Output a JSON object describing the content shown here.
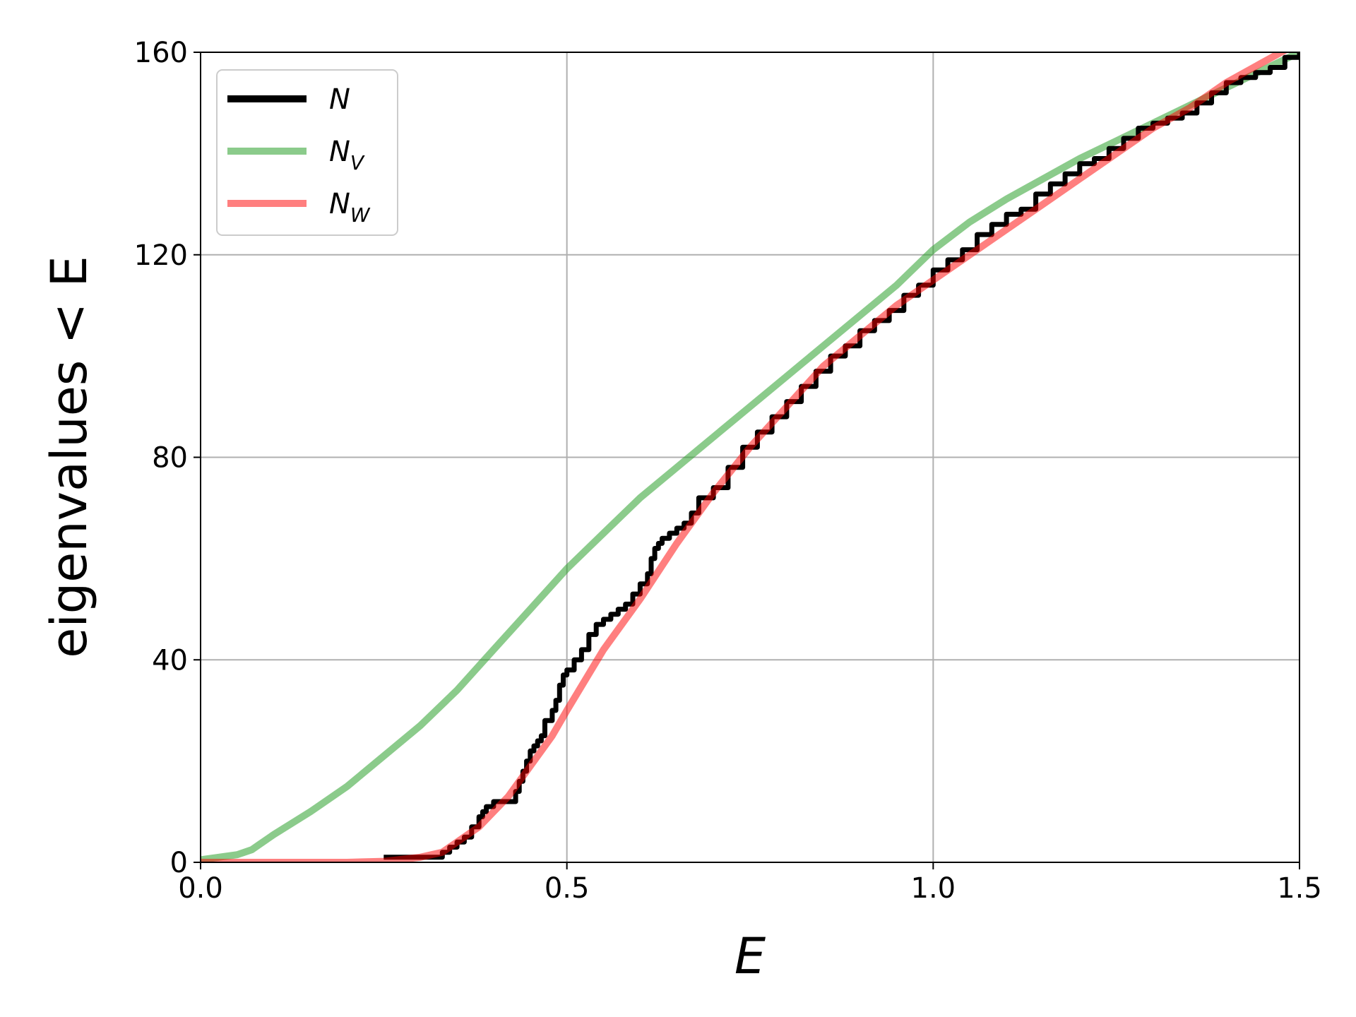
{
  "chart_data": {
    "type": "line",
    "xlabel": "E",
    "ylabel": "eigenvalues < E",
    "xlim": [
      0,
      1.5
    ],
    "ylim": [
      0,
      160
    ],
    "xticks": [
      "0.0",
      "0.5",
      "1.0",
      "1.5"
    ],
    "xtick_values": [
      0,
      0.5,
      1.0,
      1.5
    ],
    "yticks": [
      "0",
      "40",
      "80",
      "120",
      "160"
    ],
    "ytick_values": [
      0,
      40,
      80,
      120,
      160
    ],
    "grid": true,
    "legend_position": "top-left",
    "series": [
      {
        "name": "N",
        "legend_main": "N",
        "legend_sub": "",
        "color": "#000000",
        "opacity": 1,
        "style": "step",
        "x": [
          0.25,
          0.33,
          0.34,
          0.35,
          0.36,
          0.37,
          0.38,
          0.385,
          0.39,
          0.4,
          0.41,
          0.43,
          0.435,
          0.44,
          0.445,
          0.45,
          0.455,
          0.46,
          0.465,
          0.47,
          0.48,
          0.485,
          0.49,
          0.495,
          0.5,
          0.51,
          0.52,
          0.53,
          0.54,
          0.545,
          0.55,
          0.56,
          0.57,
          0.58,
          0.59,
          0.6,
          0.61,
          0.615,
          0.62,
          0.625,
          0.63,
          0.64,
          0.65,
          0.66,
          0.67,
          0.68,
          0.7,
          0.72,
          0.74,
          0.76,
          0.78,
          0.8,
          0.82,
          0.84,
          0.86,
          0.88,
          0.9,
          0.92,
          0.94,
          0.96,
          0.98,
          1.0,
          1.02,
          1.04,
          1.06,
          1.08,
          1.1,
          1.12,
          1.14,
          1.16,
          1.18,
          1.2,
          1.22,
          1.24,
          1.26,
          1.28,
          1.3,
          1.32,
          1.34,
          1.36,
          1.38,
          1.4,
          1.42,
          1.44,
          1.46,
          1.48,
          1.5
        ],
        "y": [
          1,
          2,
          3,
          4,
          5,
          7,
          9,
          10,
          11,
          12,
          12,
          14,
          16,
          18,
          20,
          22,
          23,
          24,
          25,
          28,
          30,
          32,
          35,
          37,
          38,
          40,
          42,
          45,
          47,
          47,
          48,
          49,
          50,
          51,
          53,
          55,
          57,
          60,
          62,
          63,
          64,
          65,
          66,
          67,
          69,
          72,
          74,
          78,
          82,
          85,
          88,
          91,
          94,
          97,
          100,
          102,
          105,
          107,
          109,
          112,
          114,
          117,
          119,
          121,
          124,
          126,
          128,
          129,
          132,
          134,
          136,
          138,
          139,
          141,
          143,
          145,
          146,
          147,
          148,
          150,
          152,
          154,
          155,
          156,
          157,
          159,
          160
        ]
      },
      {
        "name": "N_V",
        "legend_main": "N",
        "legend_sub": "V",
        "color": "#2ca02c",
        "opacity": 0.55,
        "style": "line",
        "x": [
          0,
          0.05,
          0.07,
          0.08,
          0.1,
          0.15,
          0.2,
          0.25,
          0.3,
          0.35,
          0.4,
          0.45,
          0.5,
          0.55,
          0.6,
          0.65,
          0.7,
          0.75,
          0.8,
          0.85,
          0.9,
          0.95,
          1.0,
          1.05,
          1.1,
          1.15,
          1.2,
          1.25,
          1.3,
          1.35,
          1.4,
          1.45,
          1.5
        ],
        "y": [
          0.5,
          1.5,
          2.5,
          3.5,
          5.5,
          10,
          15,
          21,
          27,
          34,
          42,
          50,
          58,
          65,
          72,
          78,
          84,
          90,
          96,
          102,
          108,
          114,
          121,
          126.5,
          131,
          135,
          139,
          142.5,
          146,
          149.5,
          153,
          156.5,
          160
        ]
      },
      {
        "name": "N_W",
        "legend_main": "N",
        "legend_sub": "W",
        "color": "#ff0000",
        "opacity": 0.5,
        "style": "line",
        "x": [
          0,
          0.2,
          0.25,
          0.3,
          0.33,
          0.35,
          0.38,
          0.4,
          0.42,
          0.45,
          0.48,
          0.5,
          0.55,
          0.6,
          0.65,
          0.7,
          0.75,
          0.8,
          0.85,
          0.9,
          0.95,
          1.0,
          1.05,
          1.1,
          1.15,
          1.2,
          1.25,
          1.3,
          1.35,
          1.4,
          1.45,
          1.5
        ],
        "y": [
          0,
          0,
          0.2,
          1,
          2,
          4,
          7,
          10,
          13,
          19,
          25,
          30,
          42,
          52,
          63,
          73,
          82,
          90,
          98,
          104,
          110,
          115,
          120,
          125,
          130,
          135,
          140,
          145,
          149,
          154,
          158,
          162
        ]
      }
    ]
  }
}
